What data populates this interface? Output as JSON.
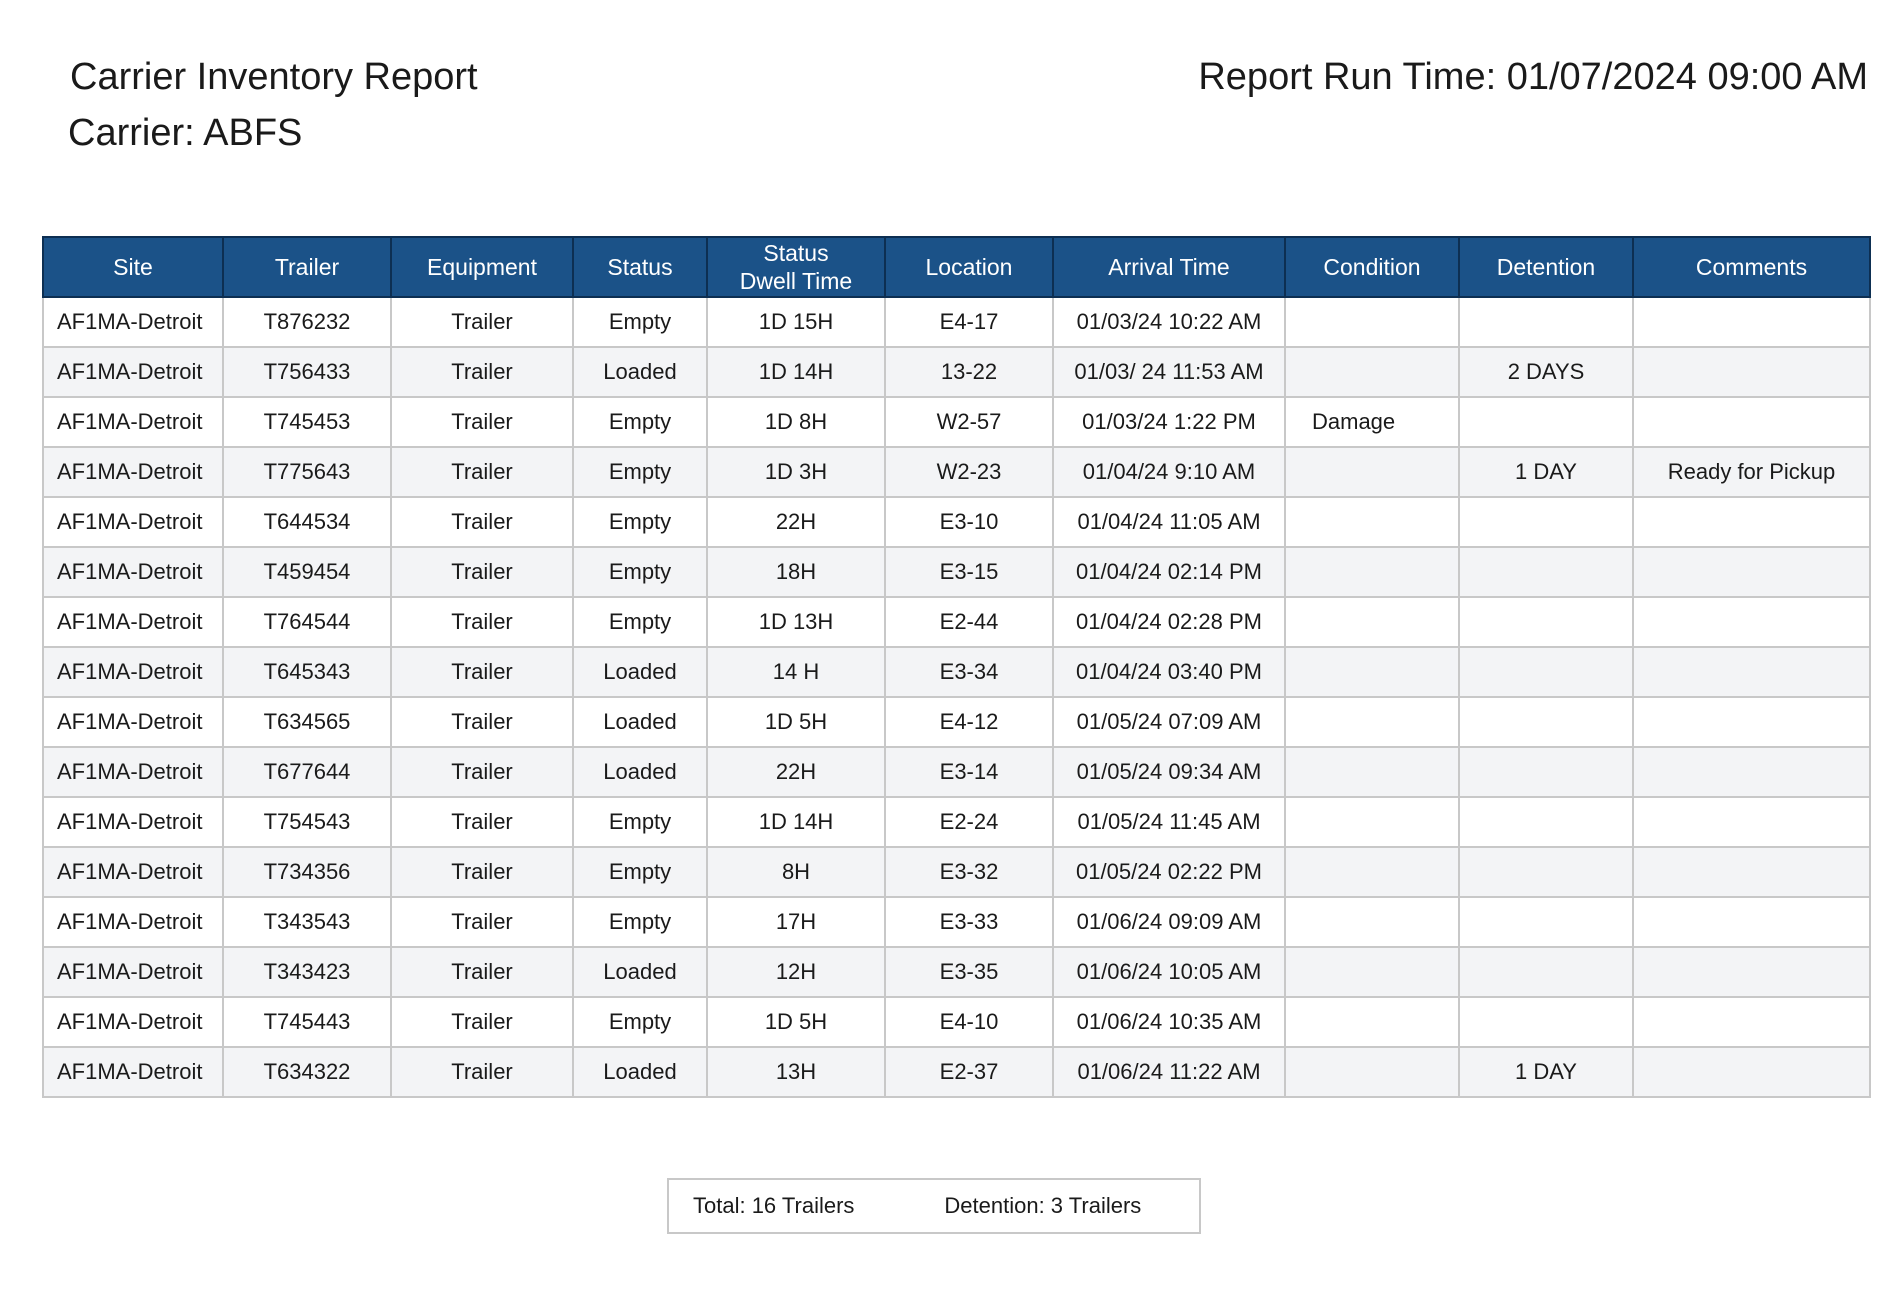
{
  "header": {
    "title": "Carrier Inventory Report",
    "carrier": "Carrier: ABFS",
    "run_time": "Report Run Time: 01/07/2024 09:00 AM"
  },
  "table": {
    "columns": [
      "Site",
      "Trailer",
      "Equipment",
      "Status",
      "Status\nDwell Time",
      "Location",
      "Arrival Time",
      "Condition",
      "Detention",
      "Comments"
    ],
    "rows": [
      [
        "AF1MA-Detroit",
        "T876232",
        "Trailer",
        "Empty",
        "1D 15H",
        "E4-17",
        "01/03/24  10:22 AM",
        "",
        "",
        ""
      ],
      [
        "AF1MA-Detroit",
        "T756433",
        "Trailer",
        "Loaded",
        "1D 14H",
        "13-22",
        "01/03/ 24  11:53 AM",
        "",
        "2 DAYS",
        ""
      ],
      [
        "AF1MA-Detroit",
        "T745453",
        "Trailer",
        "Empty",
        "1D 8H",
        "W2-57",
        "01/03/24  1:22 PM",
        "Damage",
        "",
        ""
      ],
      [
        "AF1MA-Detroit",
        "T775643",
        "Trailer",
        "Empty",
        "1D 3H",
        "W2-23",
        "01/04/24  9:10 AM",
        "",
        "1 DAY",
        "Ready for Pickup"
      ],
      [
        "AF1MA-Detroit",
        "T644534",
        "Trailer",
        "Empty",
        "22H",
        "E3-10",
        "01/04/24  11:05 AM",
        "",
        "",
        ""
      ],
      [
        "AF1MA-Detroit",
        "T459454",
        "Trailer",
        "Empty",
        "18H",
        "E3-15",
        "01/04/24  02:14 PM",
        "",
        "",
        ""
      ],
      [
        "AF1MA-Detroit",
        "T764544",
        "Trailer",
        "Empty",
        "1D 13H",
        "E2-44",
        "01/04/24  02:28 PM",
        "",
        "",
        ""
      ],
      [
        "AF1MA-Detroit",
        "T645343",
        "Trailer",
        "Loaded",
        "14 H",
        "E3-34",
        "01/04/24  03:40 PM",
        "",
        "",
        ""
      ],
      [
        "AF1MA-Detroit",
        "T634565",
        "Trailer",
        "Loaded",
        "1D 5H",
        "E4-12",
        "01/05/24  07:09 AM",
        "",
        "",
        ""
      ],
      [
        "AF1MA-Detroit",
        "T677644",
        "Trailer",
        "Loaded",
        "22H",
        "E3-14",
        "01/05/24  09:34 AM",
        "",
        "",
        ""
      ],
      [
        "AF1MA-Detroit",
        "T754543",
        "Trailer",
        "Empty",
        "1D 14H",
        "E2-24",
        "01/05/24  11:45 AM",
        "",
        "",
        ""
      ],
      [
        "AF1MA-Detroit",
        "T734356",
        "Trailer",
        "Empty",
        "8H",
        "E3-32",
        "01/05/24  02:22 PM",
        "",
        "",
        ""
      ],
      [
        "AF1MA-Detroit",
        "T343543",
        "Trailer",
        "Empty",
        "17H",
        "E3-33",
        "01/06/24  09:09 AM",
        "",
        "",
        ""
      ],
      [
        "AF1MA-Detroit",
        "T343423",
        "Trailer",
        "Loaded",
        "12H",
        "E3-35",
        "01/06/24  10:05 AM",
        "",
        "",
        ""
      ],
      [
        "AF1MA-Detroit",
        "T745443",
        "Trailer",
        "Empty",
        "1D 5H",
        "E4-10",
        "01/06/24  10:35 AM",
        "",
        "",
        ""
      ],
      [
        "AF1MA-Detroit",
        "T634322",
        "Trailer",
        "Loaded",
        "13H",
        "E2-37",
        "01/06/24  11:22 AM",
        "",
        "1 DAY",
        ""
      ]
    ]
  },
  "summary": {
    "total": "Total: 16 Trailers",
    "detention": "Detention: 3 Trailers"
  },
  "colors": {
    "header_bg": "#1b5288",
    "row_alt": "#f3f4f6",
    "border": "#c8c8c8"
  }
}
